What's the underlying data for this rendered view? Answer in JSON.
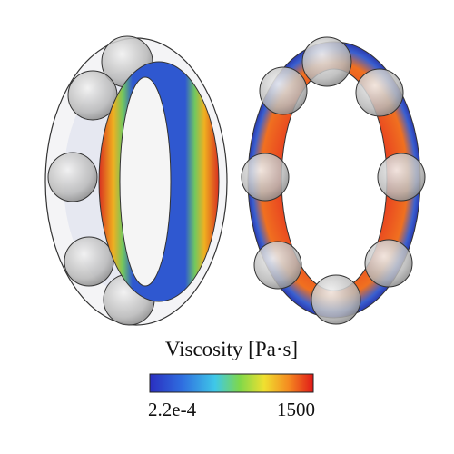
{
  "colorbar": {
    "title": "Viscosity [Pa·s]",
    "min_label": "2.2e-4",
    "max_label": "1500"
  }
}
